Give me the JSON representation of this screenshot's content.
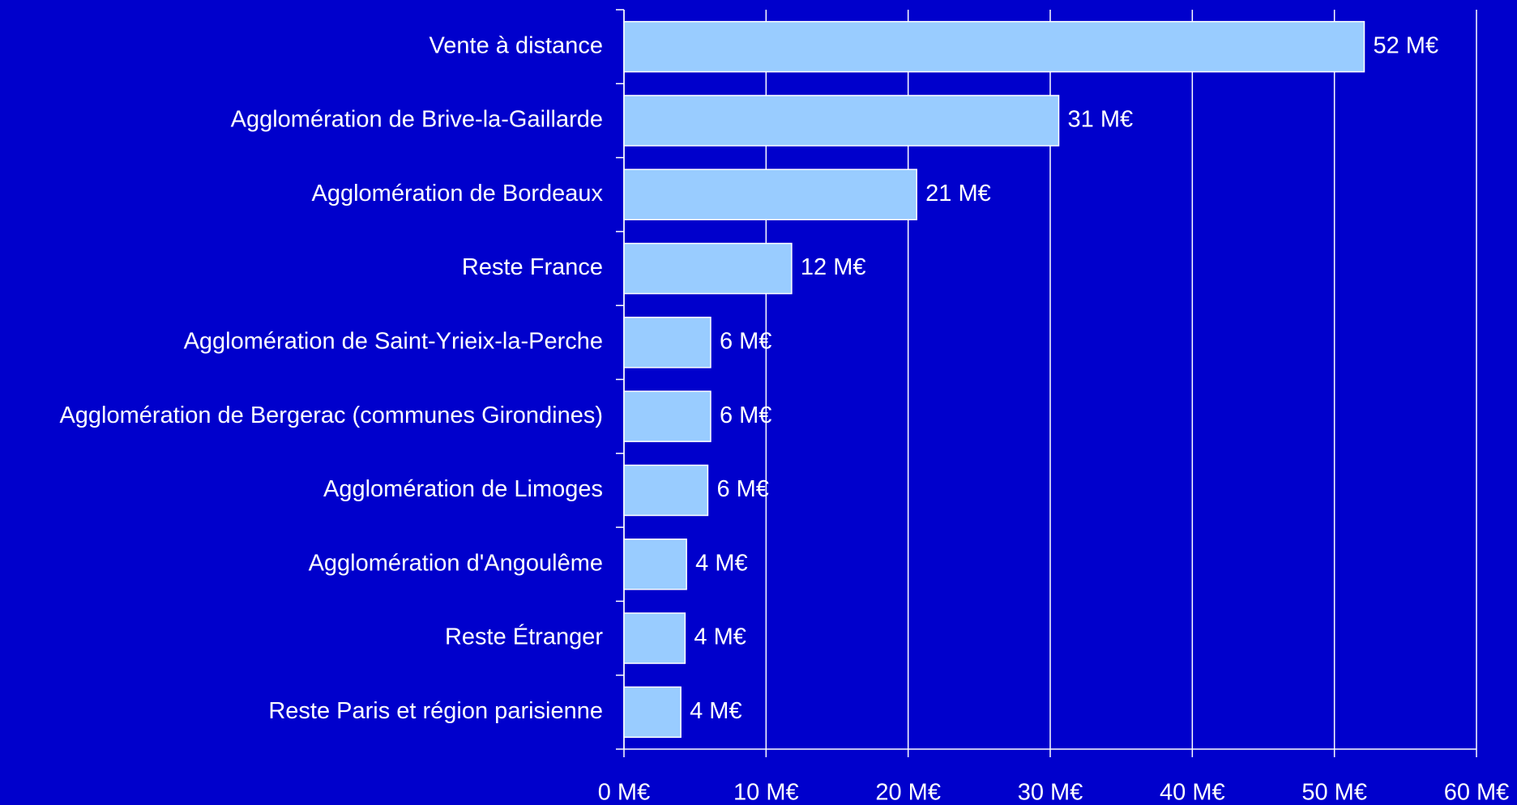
{
  "chart_data": {
    "type": "bar",
    "orientation": "horizontal",
    "categories": [
      "Vente à distance",
      "Agglomération de Brive-la-Gaillarde",
      "Agglomération de Bordeaux",
      "Reste France",
      "Agglomération de Saint-Yrieix-la-Perche",
      "Agglomération de Bergerac (communes Girondines)",
      "Agglomération de Limoges",
      "Agglomération d'Angoulême",
      "Reste Étranger",
      "Reste Paris et région parisienne"
    ],
    "values": [
      52.1,
      30.6,
      20.6,
      11.8,
      6.1,
      6.1,
      5.9,
      4.4,
      4.3,
      4.0
    ],
    "value_labels": [
      "52 M€",
      "31 M€",
      "21 M€",
      "12 M€",
      "6 M€",
      "6 M€",
      "6 M€",
      "4 M€",
      "4 M€",
      "4 M€"
    ],
    "color": "#99ccff",
    "xlim": [
      0,
      60
    ],
    "xticks": [
      {
        "value": 0,
        "label": "0 M€"
      },
      {
        "value": 10,
        "label": "10 M€"
      },
      {
        "value": 20,
        "label": "20 M€"
      },
      {
        "value": 30,
        "label": "30 M€"
      },
      {
        "value": 40,
        "label": "40 M€"
      },
      {
        "value": 50,
        "label": "50 M€"
      },
      {
        "value": 60,
        "label": "60 M€"
      }
    ],
    "grid": true
  }
}
